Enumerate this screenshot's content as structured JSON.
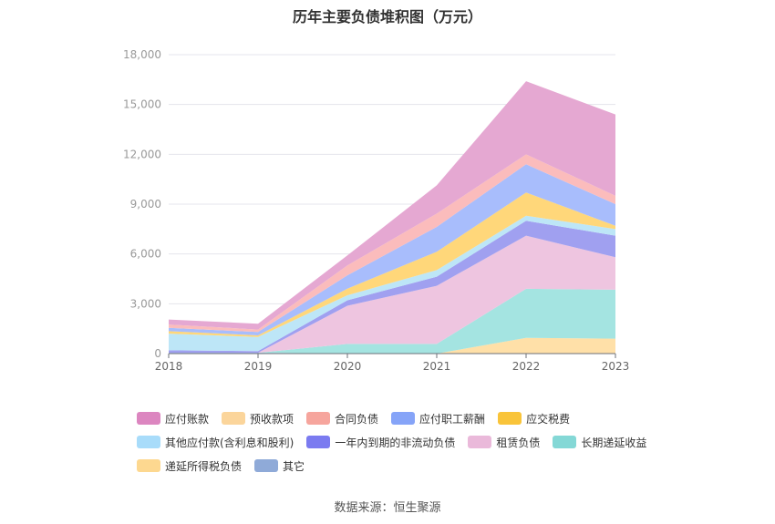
{
  "chart_data": {
    "type": "area",
    "stacked": true,
    "title": "历年主要负债堆积图（万元）",
    "categories": [
      "2018",
      "2019",
      "2020",
      "2021",
      "2022",
      "2023"
    ],
    "ylim": [
      0,
      18000
    ],
    "yticks": [
      0,
      3000,
      6000,
      9000,
      12000,
      15000,
      18000
    ],
    "ytick_labels": [
      "0",
      "3,000",
      "6,000",
      "9,000",
      "12,000",
      "15,000",
      "18,000"
    ],
    "grid": true,
    "legend_position": "bottom",
    "series": [
      {
        "name": "其它",
        "color": "#8eaadb",
        "values": [
          50,
          50,
          0,
          0,
          0,
          0
        ]
      },
      {
        "name": "递延所得税负债",
        "color": "#ffe0a8",
        "values": [
          0,
          0,
          0,
          0,
          950,
          900
        ]
      },
      {
        "name": "长期递延收益",
        "color": "#a4e4e1",
        "values": [
          0,
          0,
          580,
          580,
          2950,
          2950
        ]
      },
      {
        "name": "租赁负债",
        "color": "#eec5e0",
        "values": [
          0,
          0,
          2300,
          3500,
          3200,
          1950
        ]
      },
      {
        "name": "一年内到期的非流动负债",
        "color": "#a0a0f0",
        "values": [
          150,
          100,
          330,
          550,
          900,
          1300
        ]
      },
      {
        "name": "其他应付款(含利息和股利)",
        "color": "#bde6f7",
        "values": [
          1000,
          850,
          300,
          400,
          300,
          400
        ]
      },
      {
        "name": "应交税费",
        "color": "#ffd77a",
        "values": [
          150,
          100,
          400,
          1100,
          1400,
          200
        ]
      },
      {
        "name": "应付职工薪酬",
        "color": "#a8bdfc",
        "values": [
          200,
          200,
          800,
          1500,
          1700,
          1300
        ]
      },
      {
        "name": "合同负债",
        "color": "#fbbcbc",
        "values": [
          200,
          150,
          600,
          800,
          600,
          500
        ]
      },
      {
        "name": "预收款项",
        "color": "#fcdcb0",
        "values": [
          0,
          0,
          0,
          0,
          0,
          0
        ]
      },
      {
        "name": "应付账款",
        "color": "#e5a8d2",
        "values": [
          300,
          350,
          600,
          1700,
          4400,
          4900
        ]
      }
    ]
  },
  "legend": [
    {
      "label": "应付账款",
      "color": "#dc86c0"
    },
    {
      "label": "预收款项",
      "color": "#fbd59b"
    },
    {
      "label": "合同负债",
      "color": "#f6a59d"
    },
    {
      "label": "应付职工薪酬",
      "color": "#86a4f8"
    },
    {
      "label": "应交税费",
      "color": "#f9c43a"
    },
    {
      "label": "其他应付款(含利息和股利)",
      "color": "#a8dcfa"
    },
    {
      "label": "一年内到期的非流动负债",
      "color": "#7b7bf0"
    },
    {
      "label": "租赁负债",
      "color": "#eab9da"
    },
    {
      "label": "长期递延收益",
      "color": "#84d8d6"
    },
    {
      "label": "递延所得税负债",
      "color": "#fdd890"
    },
    {
      "label": "其它",
      "color": "#8faad8"
    }
  ],
  "source": "数据来源：恒生聚源"
}
